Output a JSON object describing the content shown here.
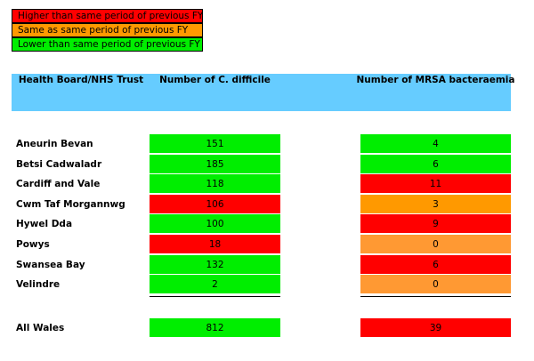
{
  "legend": [
    {
      "label": "Higher than same period of previous FY",
      "color": "#ff0000"
    },
    {
      "label": "Same as same period of previous FY",
      "color": "#ff9900"
    },
    {
      "label": "Lower than same period of previous FY",
      "color": "#00ee00"
    }
  ],
  "table": {
    "header_color": "#66ccff",
    "columns": [
      "Health Board/NHS Trust",
      "Number of C. difficile",
      "Number of MRSA bacteraemia"
    ],
    "rows": [
      {
        "name": "Aneurin Bevan",
        "c_difficile": {
          "value": 151,
          "color": "#00ee00"
        },
        "mrsa": {
          "value": 4,
          "color": "#00ee00"
        }
      },
      {
        "name": "Betsi Cadwaladr",
        "c_difficile": {
          "value": 185,
          "color": "#00ee00"
        },
        "mrsa": {
          "value": 6,
          "color": "#00ee00"
        }
      },
      {
        "name": "Cardiff and Vale",
        "c_difficile": {
          "value": 118,
          "color": "#00ee00"
        },
        "mrsa": {
          "value": 11,
          "color": "#ff0000"
        }
      },
      {
        "name": "Cwm Taf Morgannwg",
        "c_difficile": {
          "value": 106,
          "color": "#ff0000"
        },
        "mrsa": {
          "value": 3,
          "color": "#ff9900"
        }
      },
      {
        "name": "Hywel Dda",
        "c_difficile": {
          "value": 100,
          "color": "#00ee00"
        },
        "mrsa": {
          "value": 9,
          "color": "#ff0000"
        }
      },
      {
        "name": "Powys",
        "c_difficile": {
          "value": 18,
          "color": "#ff0000"
        },
        "mrsa": {
          "value": 0,
          "color": "#ff9933"
        }
      },
      {
        "name": "Swansea Bay",
        "c_difficile": {
          "value": 132,
          "color": "#00ee00"
        },
        "mrsa": {
          "value": 6,
          "color": "#ff0000"
        }
      },
      {
        "name": "Velindre",
        "c_difficile": {
          "value": 2,
          "color": "#00ee00"
        },
        "mrsa": {
          "value": 0,
          "color": "#ff9933"
        }
      }
    ],
    "total": {
      "name": "All Wales",
      "c_difficile": {
        "value": 812,
        "color": "#00ee00"
      },
      "mrsa": {
        "value": 39,
        "color": "#ff0000"
      }
    }
  }
}
